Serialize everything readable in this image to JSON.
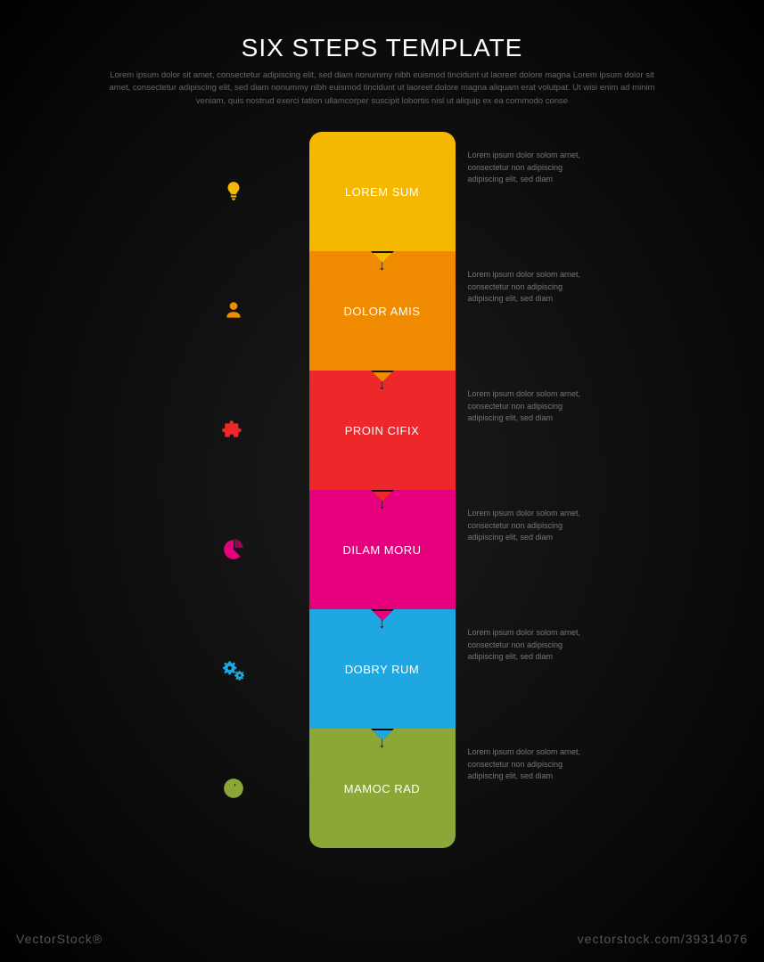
{
  "header": {
    "title": "SIX STEPS TEMPLATE",
    "subtitle": "Lorem ipsum dolor sit amet, consectetur adipiscing elit, sed diam nonummy nibh euismod tincidunt ut laoreet dolore magna Lorem ipsum dolor sit amet, consectetur adipiscing elit, sed diam nonummy nibh euismod tincidunt ut laoreet dolore magna aliquam erat volutpat. Ut wisi enim ad minim veniam, quis nostrud exerci tation ullamcorper suscipit lobortis nisl ut aliquip ex ea commodo conse"
  },
  "infographic": {
    "type": "vertical-steps",
    "background_color": "#0a0a0a",
    "step_width": 164,
    "step_height": 134,
    "border_radius": 14,
    "label_fontsize": 13,
    "label_color": "#ffffff",
    "desc_fontsize": 9,
    "desc_color": "#777777",
    "steps": [
      {
        "label": "LOREM SUM",
        "color": "#f5b700",
        "icon": "lightbulb-icon",
        "desc": "Lorem ipsum dolor solom arnet, consectetur non adipiscing adipiscing elit, sed diam"
      },
      {
        "label": "DOLOR AMIS",
        "color": "#f08a00",
        "icon": "person-icon",
        "desc": "Lorem ipsum dolor solom arnet, consectetur non adipiscing adipiscing elit, sed diam"
      },
      {
        "label": "PROIN CIFIX",
        "color": "#ed272a",
        "icon": "puzzle-icon",
        "desc": "Lorem ipsum dolor solom arnet, consectetur non adipiscing adipiscing elit, sed diam"
      },
      {
        "label": "DILAM MORU",
        "color": "#e6007e",
        "icon": "pie-chart-icon",
        "desc": "Lorem ipsum dolor solom arnet, consectetur non adipiscing adipiscing elit, sed diam"
      },
      {
        "label": "DOBRY RUM",
        "color": "#1ea7e1",
        "icon": "gears-icon",
        "desc": "Lorem ipsum dolor solom arnet, consectetur non adipiscing adipiscing elit, sed diam"
      },
      {
        "label": "MAMOC RAD",
        "color": "#8ba738",
        "icon": "globe-icon",
        "desc": "Lorem ipsum dolor solom arnet, consectetur non adipiscing adipiscing elit, sed diam"
      }
    ]
  },
  "watermark": {
    "left": "VectorStock®",
    "right": "vectorstock.com/39314076"
  }
}
